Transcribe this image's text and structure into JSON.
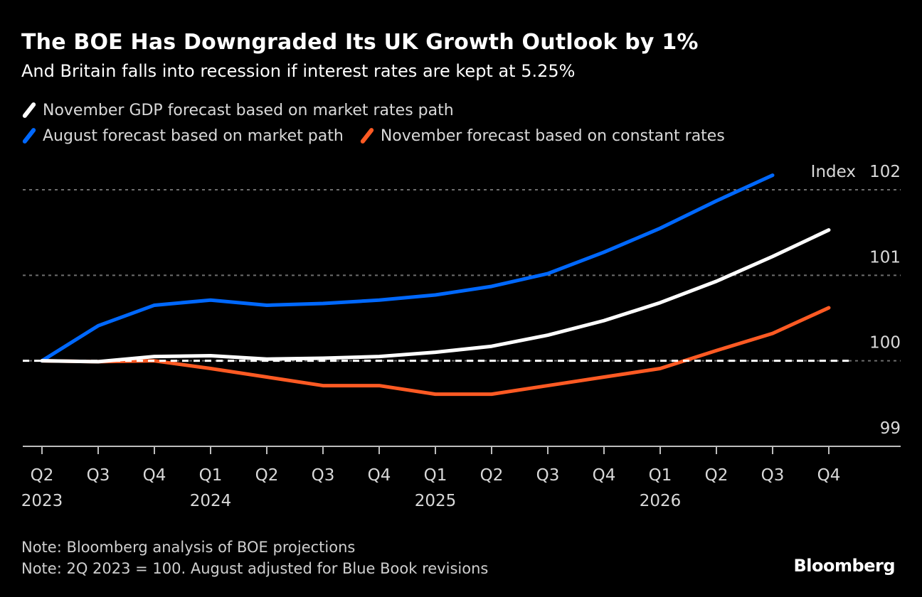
{
  "chart_data": {
    "type": "line",
    "title": "The BOE Has Downgraded Its UK Growth Outlook by 1%",
    "subtitle": "And Britain falls into recession if interest rates are kept at 5.25%",
    "ylabel": "Index",
    "xlabel": "",
    "ylim": [
      99,
      102
    ],
    "yticks": [
      99,
      100,
      101,
      102
    ],
    "ytick_labels": [
      "99",
      "100",
      "101",
      "102"
    ],
    "grid": true,
    "reference_line": 100,
    "legend_position": "top-left",
    "categories": [
      "Q2 2023",
      "Q3 2023",
      "Q4 2023",
      "Q1 2024",
      "Q2 2024",
      "Q3 2024",
      "Q4 2024",
      "Q1 2025",
      "Q2 2025",
      "Q3 2025",
      "Q4 2025",
      "Q1 2026",
      "Q2 2026",
      "Q3 2026",
      "Q4 2026"
    ],
    "xtick_quarters": [
      "Q2",
      "Q3",
      "Q4",
      "Q1",
      "Q2",
      "Q3",
      "Q4",
      "Q1",
      "Q2",
      "Q3",
      "Q4",
      "Q1",
      "Q2",
      "Q3",
      "Q4"
    ],
    "xtick_years": [
      "2023",
      "",
      "",
      "2024",
      "",
      "",
      "",
      "2025",
      "",
      "",
      "",
      "2026",
      "",
      "",
      ""
    ],
    "series": [
      {
        "name": "November GDP forecast based on market rates path",
        "color": "#ffffff",
        "values": [
          100.0,
          99.99,
          100.05,
          100.06,
          100.02,
          100.03,
          100.05,
          100.1,
          100.17,
          100.3,
          100.47,
          100.68,
          100.93,
          101.22,
          101.53
        ]
      },
      {
        "name": "August forecast based on market path",
        "color": "#0068ff",
        "values": [
          100.0,
          100.41,
          100.65,
          100.71,
          100.65,
          100.67,
          100.71,
          100.77,
          100.87,
          101.02,
          101.27,
          101.55,
          101.87,
          102.17,
          null
        ]
      },
      {
        "name": "November forecast based on constant rates",
        "color": "#ff5a23",
        "values": [
          100.0,
          99.99,
          100.0,
          99.91,
          99.81,
          99.71,
          99.71,
          99.61,
          99.61,
          99.71,
          99.81,
          99.91,
          100.12,
          100.32,
          100.62
        ]
      }
    ]
  },
  "legend": [
    {
      "label": "November GDP forecast based on market rates path",
      "color": "#ffffff"
    },
    {
      "label": "August forecast based on market path",
      "color": "#0068ff"
    },
    {
      "label": "November forecast based on constant rates",
      "color": "#ff5a23"
    }
  ],
  "notes": [
    "Note: Bloomberg analysis of BOE projections",
    "Note: 2Q 2023 = 100. August adjusted for Blue Book revisions"
  ],
  "brand": "Bloomberg",
  "colors": {
    "background": "#000000",
    "gridline": "#6e6e6e",
    "axis": "#bdbdbd",
    "text": "#d9d9d9"
  }
}
